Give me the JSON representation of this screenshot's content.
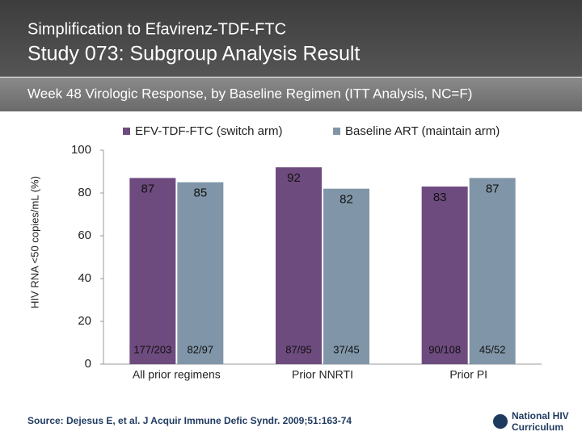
{
  "header": {
    "supertitle": "Simplification to Efavirenz-TDF-FTC",
    "title": "Study 073: Subgroup Analysis Result",
    "subtitle": "Week 48 Virologic Response, by Baseline Regimen (ITT Analysis, NC=F)"
  },
  "chart_data": {
    "type": "bar",
    "ylabel": "HIV RNA <50 copies/mL (%)",
    "categories": [
      "All prior regimens",
      "Prior NNRTI",
      "Prior PI"
    ],
    "series": [
      {
        "name": "EFV-TDF-FTC (switch arm)",
        "color": "#6e4b7e",
        "values": [
          87,
          92,
          83
        ],
        "counts": [
          "177/203",
          "87/95",
          "90/108"
        ]
      },
      {
        "name": "Baseline ART (maintain arm)",
        "color": "#8096a8",
        "values": [
          85,
          82,
          87
        ],
        "counts": [
          "82/97",
          "37/45",
          "45/52"
        ]
      }
    ],
    "ylim": [
      0,
      100
    ],
    "yticks": [
      0,
      20,
      40,
      60,
      80,
      100
    ],
    "grid": false,
    "legend": "top"
  },
  "source": "Source: Dejesus E, et al. J Acquir Immune Defic Syndr. 2009;51:163-74",
  "logo": {
    "line1": "National HIV",
    "line2": "Curriculum"
  }
}
